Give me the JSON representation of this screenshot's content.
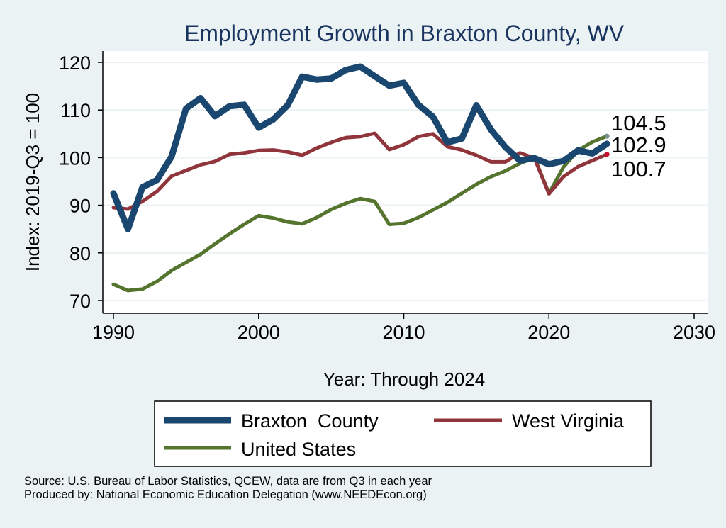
{
  "chart_data": {
    "type": "line",
    "title": "Employment Growth in Braxton County, WV",
    "xlabel": "Year: Through 2024",
    "ylabel": "Index: 2019-Q3 = 100",
    "xlim": [
      1990,
      2030
    ],
    "ylim": [
      70,
      120
    ],
    "xticks": [
      "1990",
      "2000",
      "2010",
      "2020",
      "2030"
    ],
    "yticks": [
      "70",
      "80",
      "90",
      "100",
      "110",
      "120"
    ],
    "grid": true,
    "legend_position": "bottom",
    "x": [
      1990,
      1991,
      1992,
      1993,
      1994,
      1995,
      1996,
      1997,
      1998,
      1999,
      2000,
      2001,
      2002,
      2003,
      2004,
      2005,
      2006,
      2007,
      2008,
      2009,
      2010,
      2011,
      2012,
      2013,
      2014,
      2015,
      2016,
      2017,
      2018,
      2019,
      2020,
      2021,
      2022,
      2023,
      2024
    ],
    "series": [
      {
        "name": "Braxton  County",
        "color": "#1a476f",
        "values": [
          92.5,
          85.0,
          93.8,
          95.3,
          100.2,
          110.3,
          112.5,
          108.7,
          110.8,
          111.1,
          106.3,
          108.0,
          111.0,
          117.0,
          116.4,
          116.6,
          118.4,
          119.1,
          117.1,
          115.1,
          115.7,
          111.1,
          108.6,
          103.2,
          104.0,
          111.0,
          105.9,
          102.2,
          99.4,
          99.9,
          98.6,
          99.3,
          101.5,
          100.9,
          102.9
        ],
        "end_label": "102.9"
      },
      {
        "name": "West Virginia",
        "color": "#90353b",
        "values": [
          89.5,
          89.2,
          90.8,
          92.9,
          96.1,
          97.3,
          98.5,
          99.2,
          100.7,
          101.0,
          101.5,
          101.6,
          101.2,
          100.5,
          102.0,
          103.2,
          104.2,
          104.4,
          105.1,
          101.7,
          102.7,
          104.4,
          105.0,
          102.3,
          101.6,
          100.5,
          99.1,
          99.1,
          101.0,
          99.9,
          92.4,
          96.0,
          98.1,
          99.4,
          100.7
        ],
        "end_label": "100.7"
      },
      {
        "name": "United States",
        "color": "#55752f",
        "values": [
          73.4,
          72.1,
          72.4,
          74.0,
          76.3,
          78.0,
          79.7,
          81.9,
          84.0,
          86.0,
          87.8,
          87.3,
          86.5,
          86.1,
          87.4,
          89.1,
          90.4,
          91.4,
          90.8,
          86.0,
          86.2,
          87.4,
          89.0,
          90.6,
          92.5,
          94.4,
          96.0,
          97.2,
          98.8,
          100.0,
          92.5,
          98.0,
          101.5,
          103.3,
          104.5
        ],
        "end_label": "104.5"
      }
    ]
  },
  "legend": {
    "braxton": "Braxton  County",
    "wv": "West Virginia",
    "us": "United States"
  },
  "source": {
    "line1": "Source: U.S. Bureau of Labor Statistics, QCEW, data are from Q3 in each year",
    "line2": "Produced by: National Economic Education Delegation (www.NEEDEcon.org)"
  }
}
